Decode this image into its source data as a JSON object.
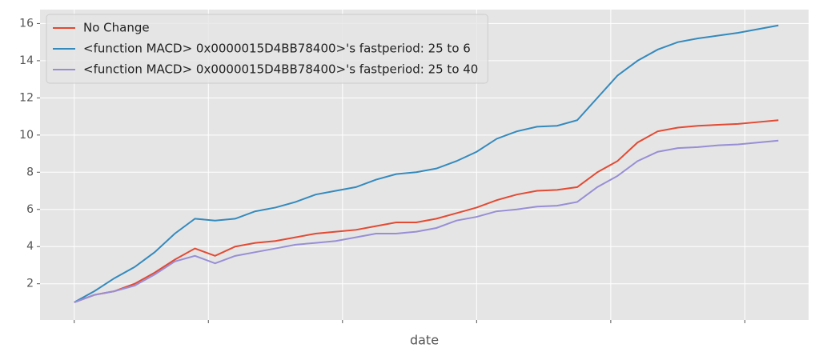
{
  "chart_data": {
    "type": "line",
    "xlabel": "date",
    "x": [
      0,
      3,
      6,
      9,
      12,
      15,
      18,
      21,
      24,
      27,
      30,
      33,
      36,
      39,
      42,
      45,
      48,
      51,
      54,
      57,
      60,
      63,
      66,
      69,
      72,
      75,
      78,
      81,
      84,
      87,
      90,
      93,
      96,
      99,
      102,
      105
    ],
    "series": [
      {
        "name": "No Change",
        "color": "#E24A33",
        "values": [
          1.0,
          1.4,
          1.6,
          2.0,
          2.6,
          3.3,
          3.9,
          3.5,
          4.0,
          4.2,
          4.3,
          4.5,
          4.7,
          4.8,
          4.9,
          5.1,
          5.3,
          5.3,
          5.5,
          5.8,
          6.1,
          6.5,
          6.8,
          7.0,
          7.05,
          7.2,
          8.0,
          8.6,
          9.6,
          10.2,
          10.4,
          10.5,
          10.55,
          10.6,
          10.7,
          10.8
        ]
      },
      {
        "name": "<function MACD> 0x0000015D4BB78400>'s fastperiod: 25 to 6",
        "color": "#348ABD",
        "values": [
          1.0,
          1.6,
          2.3,
          2.9,
          3.7,
          4.7,
          5.5,
          5.4,
          5.5,
          5.9,
          6.1,
          6.4,
          6.8,
          7.0,
          7.2,
          7.6,
          7.9,
          8.0,
          8.2,
          8.6,
          9.1,
          9.8,
          10.2,
          10.45,
          10.5,
          10.8,
          12.0,
          13.2,
          14.0,
          14.6,
          15.0,
          15.2,
          15.35,
          15.5,
          15.7,
          15.9
        ]
      },
      {
        "name": "<function MACD> 0x0000015D4BB78400>'s fastperiod: 25 to 40",
        "color": "#988ED5",
        "values": [
          1.0,
          1.4,
          1.6,
          1.9,
          2.5,
          3.2,
          3.5,
          3.1,
          3.5,
          3.7,
          3.9,
          4.1,
          4.2,
          4.3,
          4.5,
          4.7,
          4.7,
          4.8,
          5.0,
          5.4,
          5.6,
          5.9,
          6.0,
          6.15,
          6.2,
          6.4,
          7.2,
          7.8,
          8.6,
          9.1,
          9.3,
          9.35,
          9.45,
          9.5,
          9.6,
          9.7
        ]
      }
    ],
    "xlim": [
      -5.1,
      109.5
    ],
    "xticks": [
      0,
      20,
      40,
      60,
      80,
      100
    ],
    "ylim": [
      0.05,
      16.75
    ],
    "yticks": [
      2,
      4,
      6,
      8,
      10,
      12,
      14,
      16
    ],
    "grid": true,
    "legend": "upper left"
  }
}
